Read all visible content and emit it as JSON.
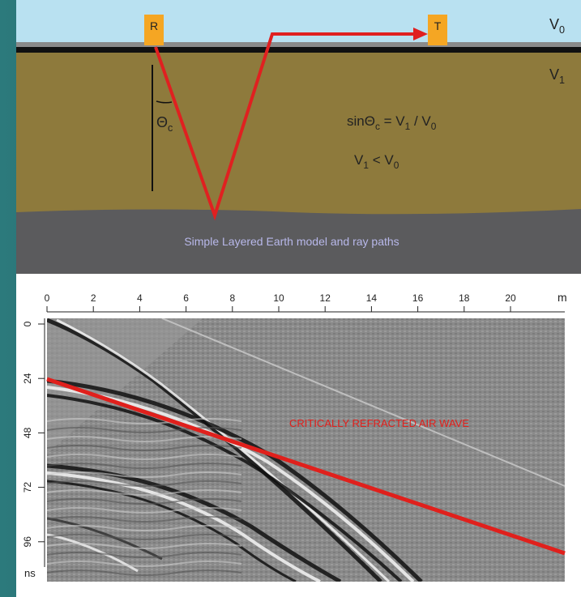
{
  "top": {
    "receiver": "R",
    "transmitter": "T",
    "v0": [
      "V",
      "0"
    ],
    "v1": [
      "V",
      "1"
    ],
    "theta": [
      "Θ",
      "c"
    ],
    "equation": [
      "sinΘ",
      "c",
      " = V",
      "1",
      " / V",
      "0"
    ],
    "inequality": [
      "V",
      "1",
      " < V",
      "0"
    ],
    "caption": "Simple Layered Earth model and ray paths"
  },
  "bottom": {
    "xticks": [
      0,
      2,
      4,
      6,
      8,
      10,
      12,
      14,
      16,
      18,
      20
    ],
    "xunit": "m",
    "yticks": [
      0,
      24,
      48,
      72,
      96
    ],
    "yunit": "ns",
    "annotation": "CRITICALLY REFRACTED AIR WAVE"
  }
}
